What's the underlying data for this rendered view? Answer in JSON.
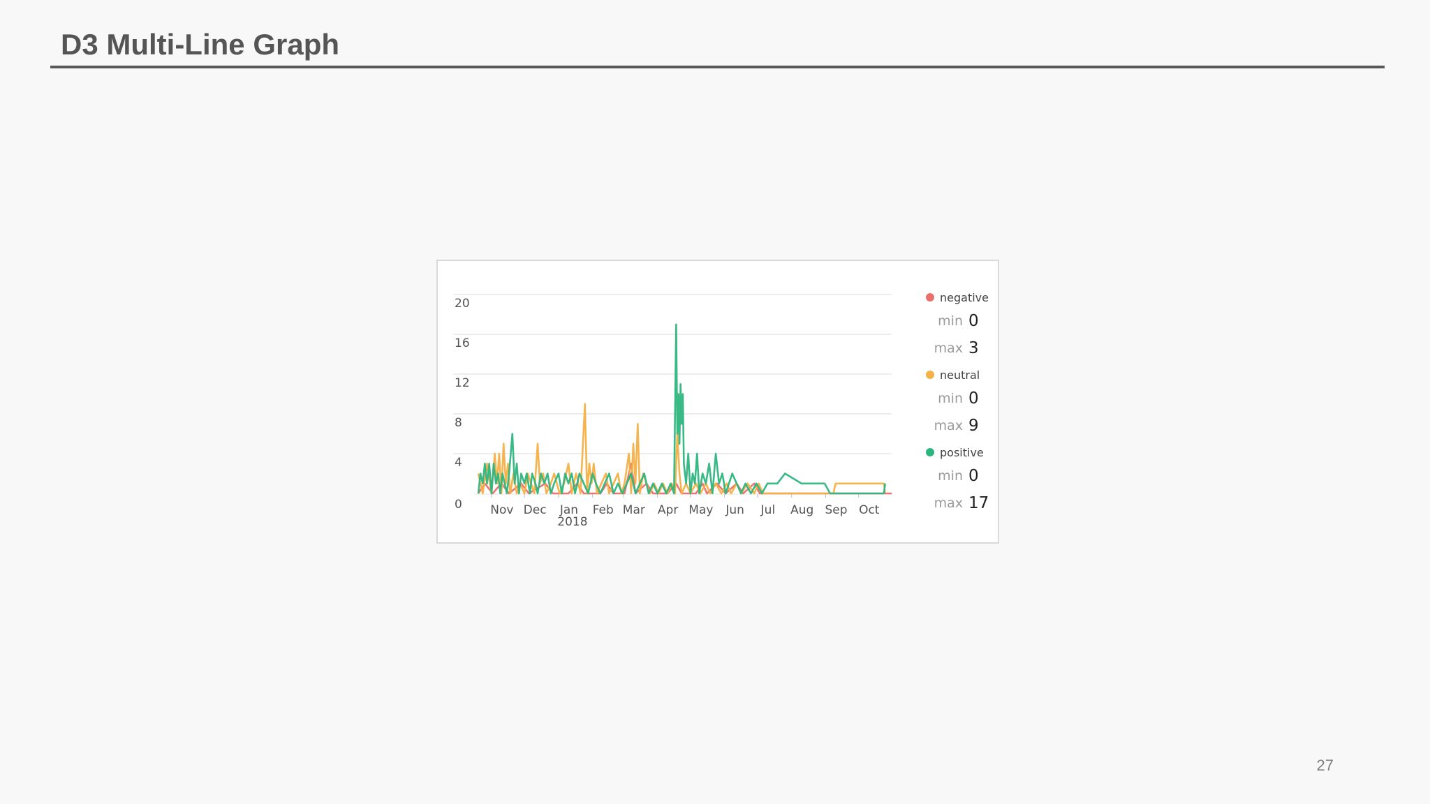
{
  "slide": {
    "title": "D3 Multi-Line Graph",
    "page_number": "27"
  },
  "chart_data": {
    "type": "line",
    "x_axis": {
      "ticks": [
        {
          "date": "2017-11-01",
          "label": "Nov",
          "sublabel": ""
        },
        {
          "date": "2017-12-01",
          "label": "Dec",
          "sublabel": ""
        },
        {
          "date": "2018-01-01",
          "label": "Jan",
          "sublabel": "2018"
        },
        {
          "date": "2018-02-01",
          "label": "Feb",
          "sublabel": ""
        },
        {
          "date": "2018-03-01",
          "label": "Mar",
          "sublabel": ""
        },
        {
          "date": "2018-04-01",
          "label": "Apr",
          "sublabel": ""
        },
        {
          "date": "2018-05-01",
          "label": "May",
          "sublabel": ""
        },
        {
          "date": "2018-06-01",
          "label": "Jun",
          "sublabel": ""
        },
        {
          "date": "2018-07-01",
          "label": "Jul",
          "sublabel": ""
        },
        {
          "date": "2018-08-01",
          "label": "Aug",
          "sublabel": ""
        },
        {
          "date": "2018-09-01",
          "label": "Sep",
          "sublabel": ""
        },
        {
          "date": "2018-10-01",
          "label": "Oct",
          "sublabel": ""
        }
      ],
      "range": [
        "2017-10-20",
        "2018-10-31"
      ]
    },
    "y_axis": {
      "ticks": [
        "0",
        "4",
        "8",
        "12",
        "16",
        "20"
      ],
      "range": [
        0,
        20
      ]
    },
    "grid": "horizontal",
    "legend_placement": "right",
    "series": [
      {
        "name": "negative",
        "color": "#e8706d",
        "min_label": "min",
        "min": "0",
        "max_label": "max",
        "max": "3",
        "points": [
          [
            "2017-10-20",
            0
          ],
          [
            "2017-10-26",
            1
          ],
          [
            "2017-11-02",
            0
          ],
          [
            "2017-11-10",
            1
          ],
          [
            "2017-11-17",
            0
          ],
          [
            "2017-11-28",
            1
          ],
          [
            "2017-12-05",
            0
          ],
          [
            "2017-12-20",
            1
          ],
          [
            "2017-12-27",
            0
          ],
          [
            "2018-01-10",
            0
          ],
          [
            "2018-01-18",
            1
          ],
          [
            "2018-01-24",
            0
          ],
          [
            "2018-02-08",
            0
          ],
          [
            "2018-02-14",
            1
          ],
          [
            "2018-02-20",
            0
          ],
          [
            "2018-03-02",
            0
          ],
          [
            "2018-03-08",
            3
          ],
          [
            "2018-03-12",
            0
          ],
          [
            "2018-03-22",
            1
          ],
          [
            "2018-03-28",
            0
          ],
          [
            "2018-04-10",
            0
          ],
          [
            "2018-04-18",
            1
          ],
          [
            "2018-04-23",
            0
          ],
          [
            "2018-05-06",
            0
          ],
          [
            "2018-05-12",
            1
          ],
          [
            "2018-05-16",
            0
          ],
          [
            "2018-05-25",
            1
          ],
          [
            "2018-06-02",
            0
          ],
          [
            "2018-06-12",
            1
          ],
          [
            "2018-06-18",
            0
          ],
          [
            "2018-06-28",
            1
          ],
          [
            "2018-07-03",
            0
          ],
          [
            "2018-10-31",
            0
          ]
        ]
      },
      {
        "name": "neutral",
        "color": "#f5b046",
        "min_label": "min",
        "min": "0",
        "max_label": "max",
        "max": "9",
        "points": [
          [
            "2017-10-20",
            2
          ],
          [
            "2017-10-24",
            0
          ],
          [
            "2017-10-28",
            3
          ],
          [
            "2017-11-01",
            0
          ],
          [
            "2017-11-04",
            4
          ],
          [
            "2017-11-06",
            1
          ],
          [
            "2017-11-08",
            4
          ],
          [
            "2017-11-10",
            0
          ],
          [
            "2017-11-12",
            5
          ],
          [
            "2017-11-14",
            1
          ],
          [
            "2017-11-16",
            3
          ],
          [
            "2017-11-18",
            0
          ],
          [
            "2017-11-21",
            2
          ],
          [
            "2017-11-24",
            0
          ],
          [
            "2017-11-27",
            1
          ],
          [
            "2017-12-01",
            0
          ],
          [
            "2017-12-04",
            2
          ],
          [
            "2017-12-07",
            1
          ],
          [
            "2017-12-10",
            0
          ],
          [
            "2017-12-13",
            5
          ],
          [
            "2017-12-15",
            1
          ],
          [
            "2017-12-18",
            2
          ],
          [
            "2017-12-21",
            0
          ],
          [
            "2017-12-25",
            1
          ],
          [
            "2017-12-28",
            2
          ],
          [
            "2018-01-02",
            0
          ],
          [
            "2018-01-06",
            1
          ],
          [
            "2018-01-10",
            3
          ],
          [
            "2018-01-13",
            0
          ],
          [
            "2018-01-17",
            2
          ],
          [
            "2018-01-21",
            0
          ],
          [
            "2018-01-25",
            9
          ],
          [
            "2018-01-27",
            0
          ],
          [
            "2018-01-29",
            3
          ],
          [
            "2018-01-31",
            1
          ],
          [
            "2018-02-02",
            3
          ],
          [
            "2018-02-05",
            0
          ],
          [
            "2018-02-09",
            1
          ],
          [
            "2018-02-13",
            2
          ],
          [
            "2018-02-16",
            0
          ],
          [
            "2018-02-20",
            1
          ],
          [
            "2018-02-24",
            2
          ],
          [
            "2018-02-27",
            0
          ],
          [
            "2018-03-02",
            1
          ],
          [
            "2018-03-06",
            4
          ],
          [
            "2018-03-08",
            0
          ],
          [
            "2018-03-10",
            5
          ],
          [
            "2018-03-12",
            1
          ],
          [
            "2018-03-14",
            7
          ],
          [
            "2018-03-16",
            0
          ],
          [
            "2018-03-19",
            2
          ],
          [
            "2018-03-22",
            1
          ],
          [
            "2018-03-25",
            0
          ],
          [
            "2018-03-29",
            1
          ],
          [
            "2018-04-02",
            0
          ],
          [
            "2018-04-06",
            1
          ],
          [
            "2018-04-10",
            0
          ],
          [
            "2018-04-14",
            1
          ],
          [
            "2018-04-17",
            0
          ],
          [
            "2018-04-19",
            6
          ],
          [
            "2018-04-21",
            2
          ],
          [
            "2018-04-23",
            0
          ],
          [
            "2018-04-27",
            1
          ],
          [
            "2018-05-01",
            0
          ],
          [
            "2018-05-06",
            1
          ],
          [
            "2018-05-10",
            0
          ],
          [
            "2018-05-15",
            1
          ],
          [
            "2018-05-19",
            0
          ],
          [
            "2018-05-24",
            1
          ],
          [
            "2018-05-29",
            0
          ],
          [
            "2018-06-03",
            1
          ],
          [
            "2018-06-07",
            0
          ],
          [
            "2018-06-12",
            1
          ],
          [
            "2018-06-16",
            0
          ],
          [
            "2018-06-22",
            1
          ],
          [
            "2018-06-28",
            0
          ],
          [
            "2018-07-02",
            1
          ],
          [
            "2018-07-06",
            0
          ],
          [
            "2018-09-08",
            0
          ],
          [
            "2018-09-10",
            1
          ],
          [
            "2018-10-24",
            1
          ],
          [
            "2018-10-25",
            0
          ]
        ]
      },
      {
        "name": "positive",
        "color": "#2db57e",
        "min_label": "min",
        "min": "0",
        "max_label": "max",
        "max": "17",
        "points": [
          [
            "2017-10-20",
            0
          ],
          [
            "2017-10-22",
            2
          ],
          [
            "2017-10-24",
            1
          ],
          [
            "2017-10-26",
            3
          ],
          [
            "2017-10-28",
            1
          ],
          [
            "2017-10-30",
            3
          ],
          [
            "2017-11-01",
            0
          ],
          [
            "2017-11-03",
            3
          ],
          [
            "2017-11-05",
            1
          ],
          [
            "2017-11-07",
            2
          ],
          [
            "2017-11-09",
            0
          ],
          [
            "2017-11-11",
            2
          ],
          [
            "2017-11-13",
            1
          ],
          [
            "2017-11-15",
            0
          ],
          [
            "2017-11-17",
            2
          ],
          [
            "2017-11-20",
            6
          ],
          [
            "2017-11-22",
            1
          ],
          [
            "2017-11-24",
            3
          ],
          [
            "2017-11-26",
            0
          ],
          [
            "2017-11-28",
            2
          ],
          [
            "2017-12-01",
            1
          ],
          [
            "2017-12-03",
            2
          ],
          [
            "2017-12-06",
            0
          ],
          [
            "2017-12-08",
            2
          ],
          [
            "2017-12-11",
            1
          ],
          [
            "2017-12-13",
            0
          ],
          [
            "2017-12-16",
            2
          ],
          [
            "2017-12-19",
            1
          ],
          [
            "2017-12-22",
            2
          ],
          [
            "2017-12-25",
            0
          ],
          [
            "2017-12-28",
            1
          ],
          [
            "2018-01-01",
            2
          ],
          [
            "2018-01-04",
            0
          ],
          [
            "2018-01-07",
            2
          ],
          [
            "2018-01-10",
            1
          ],
          [
            "2018-01-13",
            2
          ],
          [
            "2018-01-16",
            0
          ],
          [
            "2018-01-20",
            2
          ],
          [
            "2018-01-24",
            1
          ],
          [
            "2018-01-28",
            0
          ],
          [
            "2018-02-01",
            2
          ],
          [
            "2018-02-04",
            1
          ],
          [
            "2018-02-08",
            0
          ],
          [
            "2018-02-12",
            1
          ],
          [
            "2018-02-16",
            2
          ],
          [
            "2018-02-20",
            0
          ],
          [
            "2018-02-24",
            1
          ],
          [
            "2018-02-28",
            0
          ],
          [
            "2018-03-04",
            1
          ],
          [
            "2018-03-08",
            2
          ],
          [
            "2018-03-12",
            0
          ],
          [
            "2018-03-16",
            1
          ],
          [
            "2018-03-20",
            2
          ],
          [
            "2018-03-24",
            0
          ],
          [
            "2018-03-28",
            1
          ],
          [
            "2018-04-01",
            0
          ],
          [
            "2018-04-05",
            1
          ],
          [
            "2018-04-09",
            0
          ],
          [
            "2018-04-13",
            1
          ],
          [
            "2018-04-16",
            0
          ],
          [
            "2018-04-18",
            17
          ],
          [
            "2018-04-19",
            6
          ],
          [
            "2018-04-20",
            10
          ],
          [
            "2018-04-21",
            5
          ],
          [
            "2018-04-22",
            11
          ],
          [
            "2018-04-23",
            7
          ],
          [
            "2018-04-24",
            10
          ],
          [
            "2018-04-25",
            3
          ],
          [
            "2018-04-27",
            1
          ],
          [
            "2018-04-29",
            4
          ],
          [
            "2018-05-01",
            0
          ],
          [
            "2018-05-03",
            2
          ],
          [
            "2018-05-05",
            1
          ],
          [
            "2018-05-07",
            4
          ],
          [
            "2018-05-09",
            0
          ],
          [
            "2018-05-12",
            2
          ],
          [
            "2018-05-15",
            1
          ],
          [
            "2018-05-18",
            3
          ],
          [
            "2018-05-21",
            0
          ],
          [
            "2018-05-24",
            4
          ],
          [
            "2018-05-27",
            1
          ],
          [
            "2018-05-30",
            2
          ],
          [
            "2018-06-02",
            0
          ],
          [
            "2018-06-05",
            1
          ],
          [
            "2018-06-08",
            2
          ],
          [
            "2018-06-12",
            1
          ],
          [
            "2018-06-16",
            0
          ],
          [
            "2018-06-20",
            1
          ],
          [
            "2018-06-25",
            0
          ],
          [
            "2018-06-30",
            1
          ],
          [
            "2018-07-05",
            0
          ],
          [
            "2018-07-10",
            1
          ],
          [
            "2018-07-19",
            1
          ],
          [
            "2018-07-26",
            2
          ],
          [
            "2018-08-10",
            1
          ],
          [
            "2018-08-31",
            1
          ],
          [
            "2018-09-05",
            0
          ],
          [
            "2018-10-24",
            0
          ],
          [
            "2018-10-25",
            1
          ]
        ]
      }
    ]
  }
}
